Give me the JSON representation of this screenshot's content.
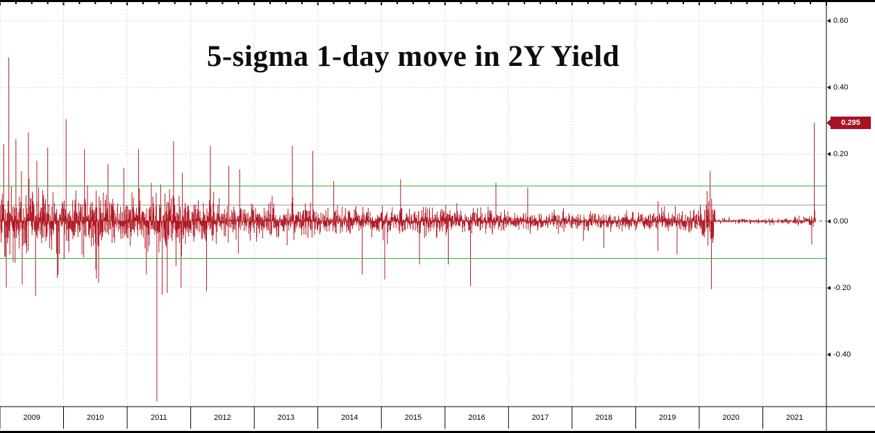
{
  "chart_data": {
    "type": "bar",
    "title": "5-sigma 1-day move in 2Y Yield",
    "description": "Daily one-day changes in the 2-year Treasury yield from 2009 through late 2021; the final bar is a 5-sigma move of +0.295, flagged on the right axis.",
    "x_start": 2009.0,
    "x_end": 2022.0,
    "t_start": 2009.0,
    "t_end": 2021.83,
    "bars_per_year": 252,
    "ylim": [
      -0.556,
      0.656
    ],
    "grid": true,
    "legend": "none",
    "y_ticks": [
      {
        "label": "0.60",
        "value": 0.6
      },
      {
        "label": "0.40",
        "value": 0.4
      },
      {
        "label": "0.20",
        "value": 0.2
      },
      {
        "label": "0.00",
        "value": 0.0
      },
      {
        "label": "-0.20",
        "value": -0.2
      },
      {
        "label": "-0.40",
        "value": -0.4
      }
    ],
    "x_tick_labels": [
      "2009",
      "2010",
      "2011",
      "2012",
      "2013",
      "2014",
      "2015",
      "2016",
      "2017",
      "2018",
      "2019",
      "2020",
      "2021"
    ],
    "last_value": 0.295,
    "last_value_label": "0.295",
    "reference_lines": [
      {
        "name": "upper-sigma-band",
        "value": 0.105,
        "style": "solid",
        "color_key": "band_line"
      },
      {
        "name": "lower-sigma-band",
        "value": -0.112,
        "style": "solid",
        "color_key": "band_line"
      },
      {
        "name": "mean-line",
        "value": 0.048,
        "style": "solid",
        "color_key": "mean_line"
      },
      {
        "name": "zero-line",
        "value": 0.0,
        "style": "dashed",
        "color_key": "zero_line"
      }
    ],
    "volatility_segments": [
      {
        "from": 2009.0,
        "to": 2009.6,
        "sigma": 0.048
      },
      {
        "from": 2009.6,
        "to": 2010.0,
        "sigma": 0.042
      },
      {
        "from": 2010.0,
        "to": 2010.6,
        "sigma": 0.04
      },
      {
        "from": 2010.6,
        "to": 2011.0,
        "sigma": 0.034
      },
      {
        "from": 2011.0,
        "to": 2011.45,
        "sigma": 0.032
      },
      {
        "from": 2011.45,
        "to": 2011.9,
        "sigma": 0.04
      },
      {
        "from": 2011.9,
        "to": 2012.4,
        "sigma": 0.028
      },
      {
        "from": 2012.4,
        "to": 2013.0,
        "sigma": 0.023
      },
      {
        "from": 2013.0,
        "to": 2014.0,
        "sigma": 0.022
      },
      {
        "from": 2014.0,
        "to": 2015.0,
        "sigma": 0.018
      },
      {
        "from": 2015.0,
        "to": 2016.2,
        "sigma": 0.02
      },
      {
        "from": 2016.2,
        "to": 2017.0,
        "sigma": 0.016
      },
      {
        "from": 2017.0,
        "to": 2018.0,
        "sigma": 0.012
      },
      {
        "from": 2018.0,
        "to": 2019.0,
        "sigma": 0.012
      },
      {
        "from": 2019.0,
        "to": 2019.9,
        "sigma": 0.014
      },
      {
        "from": 2019.9,
        "to": 2020.1,
        "sigma": 0.018
      },
      {
        "from": 2020.1,
        "to": 2020.25,
        "sigma": 0.032
      },
      {
        "from": 2020.25,
        "to": 2021.5,
        "sigma": 0.0035
      },
      {
        "from": 2021.5,
        "to": 2021.72,
        "sigma": 0.006
      },
      {
        "from": 2021.72,
        "to": 2021.83,
        "sigma": 0.012
      }
    ],
    "notable_spikes": [
      {
        "t": 2009.06,
        "v": 0.23
      },
      {
        "t": 2009.1,
        "v": -0.2
      },
      {
        "t": 2009.14,
        "v": 0.49
      },
      {
        "t": 2009.25,
        "v": 0.245
      },
      {
        "t": 2009.35,
        "v": -0.19
      },
      {
        "t": 2009.45,
        "v": 0.265
      },
      {
        "t": 2009.56,
        "v": -0.225
      },
      {
        "t": 2009.75,
        "v": 0.22
      },
      {
        "t": 2009.9,
        "v": -0.17
      },
      {
        "t": 2010.04,
        "v": 0.305
      },
      {
        "t": 2010.33,
        "v": 0.215
      },
      {
        "t": 2010.55,
        "v": -0.185
      },
      {
        "t": 2010.7,
        "v": 0.17
      },
      {
        "t": 2011.18,
        "v": 0.215
      },
      {
        "t": 2011.3,
        "v": -0.16
      },
      {
        "t": 2011.47,
        "v": -0.54
      },
      {
        "t": 2011.55,
        "v": -0.22
      },
      {
        "t": 2011.63,
        "v": -0.215
      },
      {
        "t": 2011.73,
        "v": 0.24
      },
      {
        "t": 2011.85,
        "v": -0.2
      },
      {
        "t": 2012.25,
        "v": -0.21
      },
      {
        "t": 2012.31,
        "v": 0.225
      },
      {
        "t": 2012.6,
        "v": 0.165
      },
      {
        "t": 2012.77,
        "v": 0.155
      },
      {
        "t": 2013.6,
        "v": 0.225
      },
      {
        "t": 2013.92,
        "v": 0.21
      },
      {
        "t": 2014.25,
        "v": 0.12
      },
      {
        "t": 2014.7,
        "v": -0.16
      },
      {
        "t": 2015.05,
        "v": -0.175
      },
      {
        "t": 2015.3,
        "v": 0.125
      },
      {
        "t": 2015.6,
        "v": -0.13
      },
      {
        "t": 2016.05,
        "v": -0.13
      },
      {
        "t": 2016.4,
        "v": -0.195
      },
      {
        "t": 2016.8,
        "v": 0.115
      },
      {
        "t": 2017.3,
        "v": 0.1
      },
      {
        "t": 2018.5,
        "v": -0.08
      },
      {
        "t": 2019.35,
        "v": -0.09
      },
      {
        "t": 2019.65,
        "v": -0.1
      },
      {
        "t": 2020.17,
        "v": 0.15
      },
      {
        "t": 2020.19,
        "v": -0.204
      },
      {
        "t": 2021.77,
        "v": -0.07
      },
      {
        "t": 2021.81,
        "v": 0.295
      }
    ]
  },
  "colors": {
    "bar": "#b01823",
    "last_value_box": "#a61322",
    "band_line": "#1db41d",
    "zero_line": "#cc3333",
    "mean_line": "#9b9b9b",
    "grid": "#b5b5b5",
    "axis": "#000000"
  }
}
